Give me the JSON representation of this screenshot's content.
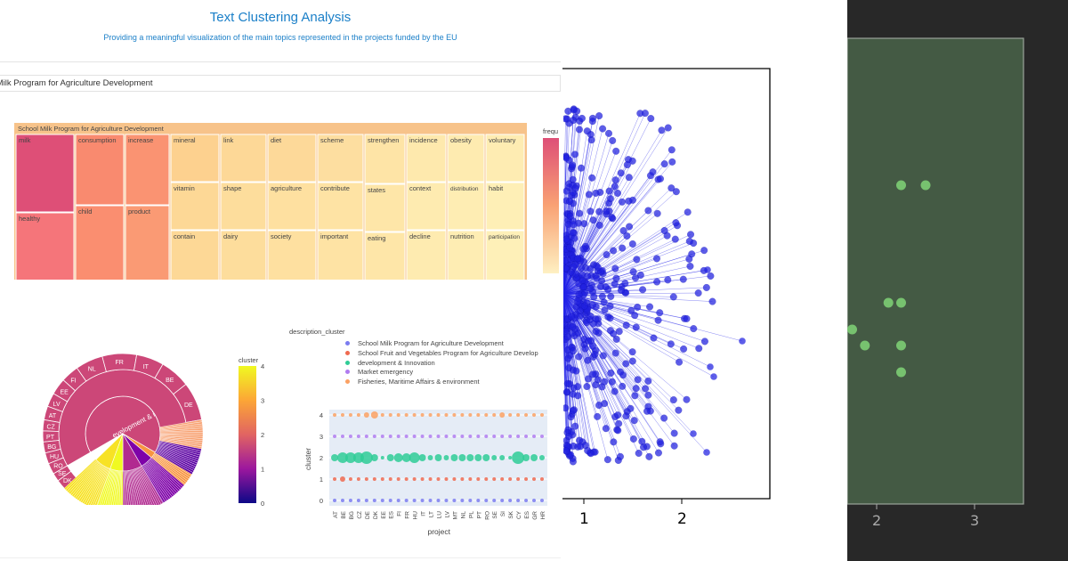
{
  "header": {
    "title": "Text Clustering Analysis",
    "subtitle": "Providing a meaningful visualization of the main topics represented in the projects funded by the EU"
  },
  "dropdown": {
    "selected": "l Milk Program for Agriculture Development"
  },
  "treemap": {
    "root_label": "School Milk Program for Agriculture Development",
    "colorbar_title": "frequ",
    "tiles": [
      "milk",
      "consumption",
      "increase",
      "mineral",
      "link",
      "diet",
      "scheme",
      "strengthen",
      "incidence",
      "obesity",
      "voluntary",
      "healthy",
      "child",
      "product",
      "vitamin",
      "shape",
      "agriculture",
      "contribute",
      "states",
      "context",
      "distribution",
      "habit",
      "contain",
      "dairy",
      "society",
      "important",
      "eating",
      "decline",
      "nutrition",
      "participation"
    ],
    "colors": {
      "high": "#de4f77",
      "mid": "#fa8b6f",
      "low": "#fee9b6",
      "border": "#f7c38a"
    }
  },
  "sunburst": {
    "center_label": "evelopment & innovatio",
    "countries": [
      "FR",
      "IT",
      "BE",
      "DE",
      "ES",
      "NL",
      "FI",
      "EE",
      "LV",
      "AT",
      "CZ",
      "PT",
      "BG",
      "HU",
      "RO",
      "SE",
      "DK"
    ]
  },
  "cluster_colorbar": {
    "title": "cluster",
    "ticks": [
      "4",
      "3",
      "2",
      "1",
      "0"
    ]
  },
  "legend": {
    "title": "description_cluster",
    "items": [
      {
        "label": "School Milk Program for Agriculture Development",
        "color": "#7b7cf0"
      },
      {
        "label": "School Fruit and Vegetables Program for Agriculture Develop",
        "color": "#ef6a50"
      },
      {
        "label": "development & Innovation",
        "color": "#2fcc96"
      },
      {
        "label": "Market emergency",
        "color": "#b07cf0"
      },
      {
        "label": "Fisheries, Maritime Affairs & environment",
        "color": "#fba163"
      }
    ]
  },
  "chart_data": [
    {
      "type": "scatter",
      "title": "",
      "xlabel": "project",
      "ylabel": "cluster",
      "categories": [
        "AT",
        "BE",
        "BG",
        "CZ",
        "DE",
        "DK",
        "EE",
        "ES",
        "FI",
        "FR",
        "HU",
        "IT",
        "LT",
        "LU",
        "LV",
        "MT",
        "NL",
        "PL",
        "PT",
        "RO",
        "SE",
        "SI",
        "SK",
        "CY",
        "ES",
        "GR",
        "HR"
      ],
      "yticks": [
        0,
        1,
        2,
        3,
        4
      ],
      "series": [
        {
          "cluster": 0,
          "sizes": [
            2,
            2,
            2,
            2,
            2,
            2,
            2,
            2,
            2,
            2,
            2,
            2,
            2,
            2,
            2,
            2,
            2,
            2,
            2,
            2,
            2,
            2,
            2,
            2,
            2,
            2,
            2
          ]
        },
        {
          "cluster": 1,
          "sizes": [
            2,
            3,
            2,
            2,
            2,
            2,
            2,
            2,
            2,
            2,
            2,
            2,
            2,
            2,
            2,
            2,
            2,
            2,
            2,
            2,
            2,
            2,
            2,
            2,
            2,
            2,
            2
          ]
        },
        {
          "cluster": 2,
          "sizes": [
            4,
            6,
            6,
            6,
            7,
            4,
            2,
            4,
            5,
            5,
            6,
            4,
            3,
            4,
            3,
            4,
            4,
            4,
            4,
            4,
            3,
            3,
            2,
            7,
            4,
            4,
            3
          ]
        },
        {
          "cluster": 3,
          "sizes": [
            2,
            2,
            2,
            2,
            2,
            2,
            2,
            2,
            2,
            2,
            2,
            2,
            2,
            2,
            2,
            2,
            2,
            2,
            2,
            2,
            2,
            2,
            2,
            2,
            2,
            2,
            2
          ]
        },
        {
          "cluster": 4,
          "sizes": [
            2,
            2,
            2,
            2,
            3,
            4,
            2,
            2,
            2,
            2,
            2,
            2,
            2,
            2,
            2,
            2,
            2,
            2,
            2,
            2,
            2,
            3,
            2,
            2,
            2,
            2,
            2
          ]
        }
      ]
    },
    {
      "type": "scatter",
      "xticks": [
        "1",
        "2"
      ],
      "color": "#2020e0",
      "note_visible_ticks_only": true
    },
    {
      "type": "scatter",
      "xticks": [
        "2",
        "3"
      ],
      "points": [
        [
          2.25,
          0.72
        ],
        [
          2.5,
          0.72
        ],
        [
          2.12,
          0.5
        ],
        [
          2.25,
          0.5
        ],
        [
          1.75,
          0.45
        ],
        [
          1.88,
          0.42
        ],
        [
          2.25,
          0.42
        ],
        [
          2.25,
          0.37
        ]
      ],
      "color": "#77c26f"
    }
  ]
}
